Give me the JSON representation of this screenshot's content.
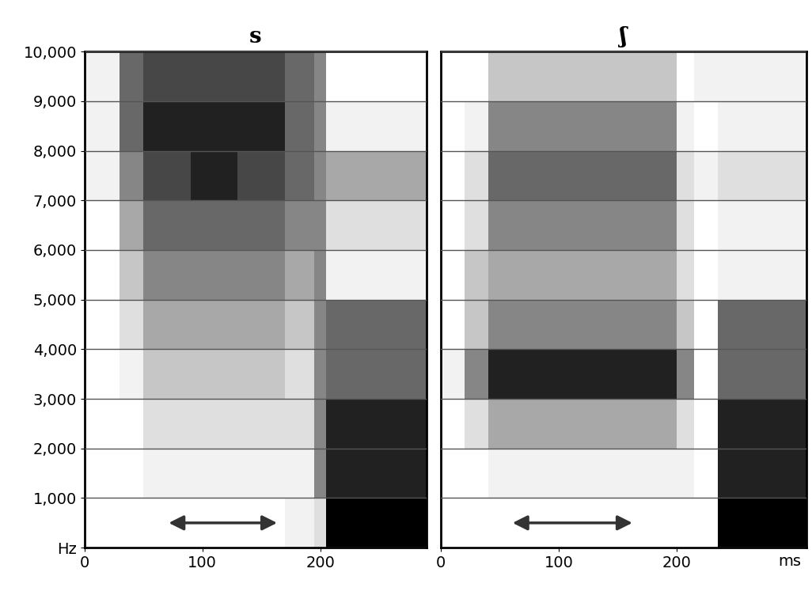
{
  "chart_data": [
    {
      "type": "heatmap",
      "title": "s",
      "x_edges": [
        0,
        30,
        50,
        70,
        90,
        110,
        130,
        150,
        170,
        195,
        205,
        225,
        245,
        265,
        290
      ],
      "y_edges": [
        0,
        1000,
        2000,
        3000,
        4000,
        5000,
        6000,
        7000,
        8000,
        9000,
        10000
      ],
      "cells": [
        [
          0,
          0,
          0,
          0,
          0,
          0,
          0,
          0,
          1,
          2,
          9,
          9,
          9,
          9
        ],
        [
          0,
          0,
          1,
          1,
          1,
          1,
          1,
          1,
          1,
          5,
          8,
          8,
          8,
          8
        ],
        [
          0,
          0,
          2,
          2,
          2,
          2,
          2,
          2,
          2,
          5,
          8,
          8,
          8,
          8
        ],
        [
          0,
          1,
          3,
          3,
          3,
          3,
          3,
          3,
          2,
          5,
          6,
          6,
          6,
          6
        ],
        [
          0,
          2,
          4,
          4,
          4,
          4,
          4,
          4,
          3,
          5,
          6,
          6,
          6,
          6
        ],
        [
          0,
          3,
          5,
          5,
          5,
          5,
          5,
          5,
          4,
          5,
          1,
          1,
          1,
          1
        ],
        [
          0,
          4,
          6,
          6,
          6,
          6,
          6,
          6,
          5,
          5,
          2,
          2,
          2,
          2
        ],
        [
          1,
          5,
          7,
          7,
          8,
          8,
          7,
          7,
          6,
          5,
          4,
          4,
          4,
          4
        ],
        [
          1,
          6,
          8,
          8,
          8,
          8,
          8,
          8,
          6,
          5,
          1,
          1,
          1,
          1
        ],
        [
          1,
          6,
          7,
          7,
          7,
          7,
          7,
          7,
          6,
          5,
          0,
          0,
          0,
          0
        ]
      ],
      "xlim": [
        0,
        290
      ],
      "ylim": [
        0,
        10000
      ],
      "xticks": [
        0,
        100,
        200
      ],
      "yticks": [
        {
          "value": 0,
          "label": "Hz"
        },
        {
          "value": 1000,
          "label": "1,000"
        },
        {
          "value": 2000,
          "label": "2,000"
        },
        {
          "value": 3000,
          "label": "3,000"
        },
        {
          "value": 4000,
          "label": "4,000"
        },
        {
          "value": 5000,
          "label": "5,000"
        },
        {
          "value": 6000,
          "label": "6,000"
        },
        {
          "value": 7000,
          "label": "7,000"
        },
        {
          "value": 8000,
          "label": "8,000"
        },
        {
          "value": 9000,
          "label": "9,000"
        },
        {
          "value": 10000,
          "label": "10,000"
        }
      ],
      "grid": true
    },
    {
      "type": "heatmap",
      "title": "ʃ",
      "xlabel": "ms",
      "x_edges": [
        0,
        20,
        40,
        60,
        80,
        100,
        120,
        140,
        160,
        180,
        200,
        215,
        235,
        255,
        275,
        295,
        310
      ],
      "y_edges": [
        0,
        1000,
        2000,
        3000,
        4000,
        5000,
        6000,
        7000,
        8000,
        9000,
        10000
      ],
      "cells": [
        [
          0,
          0,
          0,
          0,
          0,
          0,
          0,
          0,
          0,
          0,
          0,
          0,
          9,
          9,
          9,
          9
        ],
        [
          0,
          0,
          1,
          1,
          1,
          1,
          1,
          1,
          1,
          1,
          1,
          0,
          8,
          8,
          8,
          8
        ],
        [
          0,
          2,
          4,
          4,
          4,
          4,
          4,
          4,
          4,
          4,
          2,
          0,
          8,
          8,
          8,
          8
        ],
        [
          1,
          5,
          8,
          8,
          8,
          8,
          8,
          8,
          8,
          8,
          5,
          0,
          6,
          6,
          6,
          6
        ],
        [
          0,
          3,
          5,
          5,
          5,
          5,
          5,
          5,
          5,
          5,
          3,
          0,
          6,
          6,
          6,
          6
        ],
        [
          0,
          3,
          4,
          4,
          4,
          4,
          4,
          4,
          4,
          4,
          2,
          0,
          1,
          1,
          1,
          1
        ],
        [
          0,
          2,
          5,
          5,
          5,
          5,
          5,
          5,
          5,
          5,
          2,
          0,
          1,
          1,
          1,
          1
        ],
        [
          0,
          2,
          6,
          6,
          6,
          6,
          6,
          6,
          6,
          6,
          2,
          1,
          2,
          2,
          2,
          2
        ],
        [
          0,
          1,
          5,
          5,
          5,
          5,
          5,
          5,
          5,
          5,
          1,
          0,
          1,
          1,
          1,
          1
        ],
        [
          0,
          0,
          3,
          3,
          3,
          3,
          3,
          3,
          3,
          3,
          0,
          1,
          1,
          1,
          1,
          1
        ]
      ],
      "xlim": [
        0,
        310
      ],
      "ylim": [
        0,
        10000
      ],
      "xticks": [
        0,
        100,
        200
      ],
      "yticks": [
        0,
        1000,
        2000,
        3000,
        4000,
        5000,
        6000,
        7000,
        8000,
        9000,
        10000
      ],
      "tick_labels": "x",
      "grid": true
    }
  ]
}
